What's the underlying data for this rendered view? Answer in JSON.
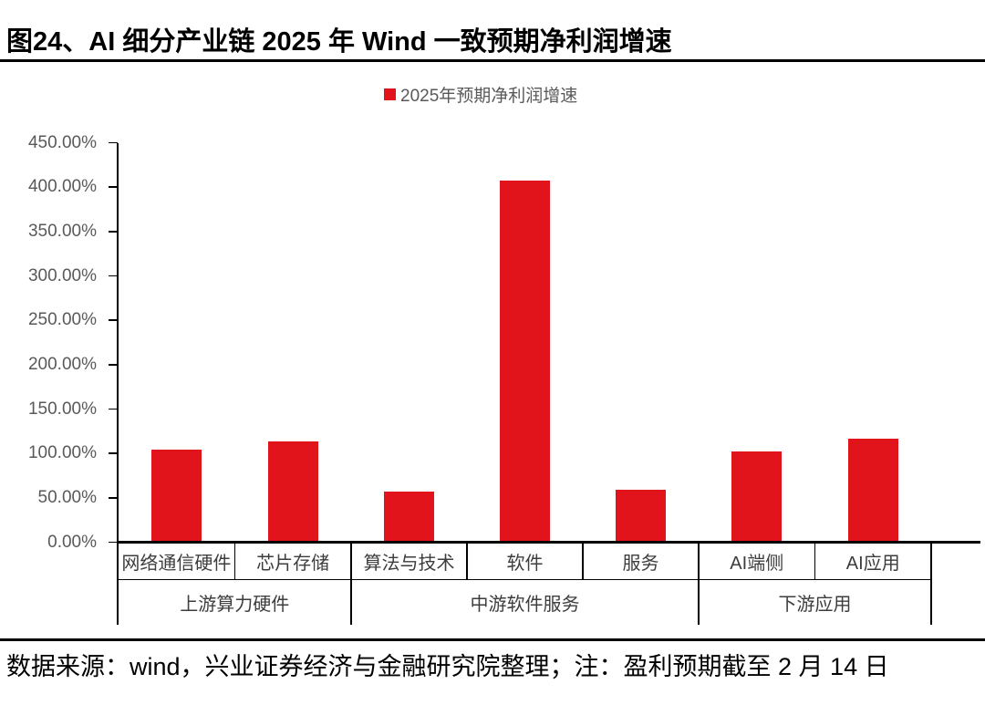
{
  "figure": {
    "title": "图24、AI 细分产业链 2025 年 Wind 一致预期净利润增速",
    "source_note": "数据来源：wind，兴业证券经济与金融研究院整理；注：盈利预期截至 2 月 14 日"
  },
  "legend": {
    "label": "2025年预期净利润增速",
    "marker_color": "#e2141b"
  },
  "colors": {
    "bar": "#e2141b",
    "axis_text": "#595959",
    "category_text": "#3d3d3d",
    "line": "#000000",
    "background": "#ffffff"
  },
  "chart_data": {
    "type": "bar",
    "title": "图24、AI 细分产业链 2025 年 Wind 一致预期净利润增速",
    "series_name": "2025年预期净利润增速",
    "legend_entries": [
      "2025年预期净利润增速"
    ],
    "legend_position": "top-center",
    "categories": [
      "网络通信硬件",
      "芯片存储",
      "算法与技术",
      "软件",
      "服务",
      "AI端侧",
      "AI应用"
    ],
    "values": [
      104,
      114,
      57,
      407,
      59,
      102,
      117
    ],
    "unit": "percent",
    "groups": [
      {
        "label": "上游算力硬件",
        "categories": [
          "网络通信硬件",
          "芯片存储"
        ]
      },
      {
        "label": "中游软件服务",
        "categories": [
          "算法与技术",
          "软件",
          "服务"
        ]
      },
      {
        "label": "下游应用",
        "categories": [
          "AI端侧",
          "AI应用"
        ]
      }
    ],
    "xlabel": "",
    "ylabel": "",
    "ylim": [
      0,
      450
    ],
    "ytick_step": 50,
    "yticks": [
      "450.00%",
      "400.00%",
      "350.00%",
      "300.00%",
      "250.00%",
      "200.00%",
      "150.00%",
      "100.00%",
      "50.00%",
      "0.00%"
    ],
    "grid": false,
    "bar_color": "#e2141b"
  }
}
